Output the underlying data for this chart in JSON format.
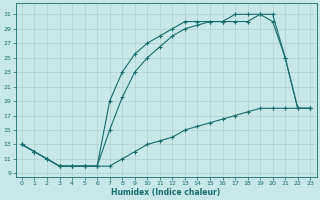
{
  "xlabel": "Humidex (Indice chaleur)",
  "bg_color": "#c8e8e8",
  "grid_color": "#b0d0d0",
  "line_color": "#1a6b6b",
  "marker": "+",
  "xlim": [
    -0.5,
    23.5
  ],
  "ylim": [
    8.5,
    32.5
  ],
  "xticks": [
    0,
    1,
    2,
    3,
    4,
    5,
    6,
    7,
    8,
    9,
    10,
    11,
    12,
    13,
    14,
    15,
    16,
    17,
    18,
    19,
    20,
    21,
    22,
    23
  ],
  "yticks": [
    9,
    11,
    13,
    15,
    17,
    19,
    21,
    23,
    25,
    27,
    29,
    31
  ],
  "line1_x": [
    0,
    1,
    2,
    3,
    4,
    5,
    6,
    7,
    8,
    9,
    10,
    11,
    12,
    13,
    14,
    15,
    16,
    17,
    18,
    19,
    20,
    21,
    22,
    23
  ],
  "line1_y": [
    13,
    12,
    11,
    10,
    10,
    10,
    10,
    19,
    23,
    25.5,
    27,
    28,
    29,
    30,
    30,
    30,
    30,
    31,
    31,
    31,
    31,
    25,
    18,
    18
  ],
  "line2_x": [
    0,
    1,
    2,
    3,
    4,
    5,
    6,
    7,
    8,
    9,
    10,
    11,
    12,
    13,
    14,
    15,
    16,
    17,
    18,
    19,
    20,
    21,
    22,
    23
  ],
  "line2_y": [
    13,
    12,
    11,
    10,
    10,
    10,
    10,
    15,
    19.5,
    23,
    25,
    26.5,
    28,
    29,
    29.5,
    30,
    30,
    30,
    30,
    31,
    30,
    25,
    18,
    18
  ],
  "line3_x": [
    0,
    1,
    2,
    3,
    4,
    5,
    6,
    7,
    8,
    9,
    10,
    11,
    12,
    13,
    14,
    15,
    16,
    17,
    18,
    19,
    20,
    21,
    22,
    23
  ],
  "line3_y": [
    13,
    12,
    11,
    10,
    10,
    10,
    10,
    10,
    11,
    12,
    13,
    13.5,
    14,
    15,
    15.5,
    16,
    16.5,
    17,
    17.5,
    18,
    18,
    18,
    18,
    18
  ]
}
